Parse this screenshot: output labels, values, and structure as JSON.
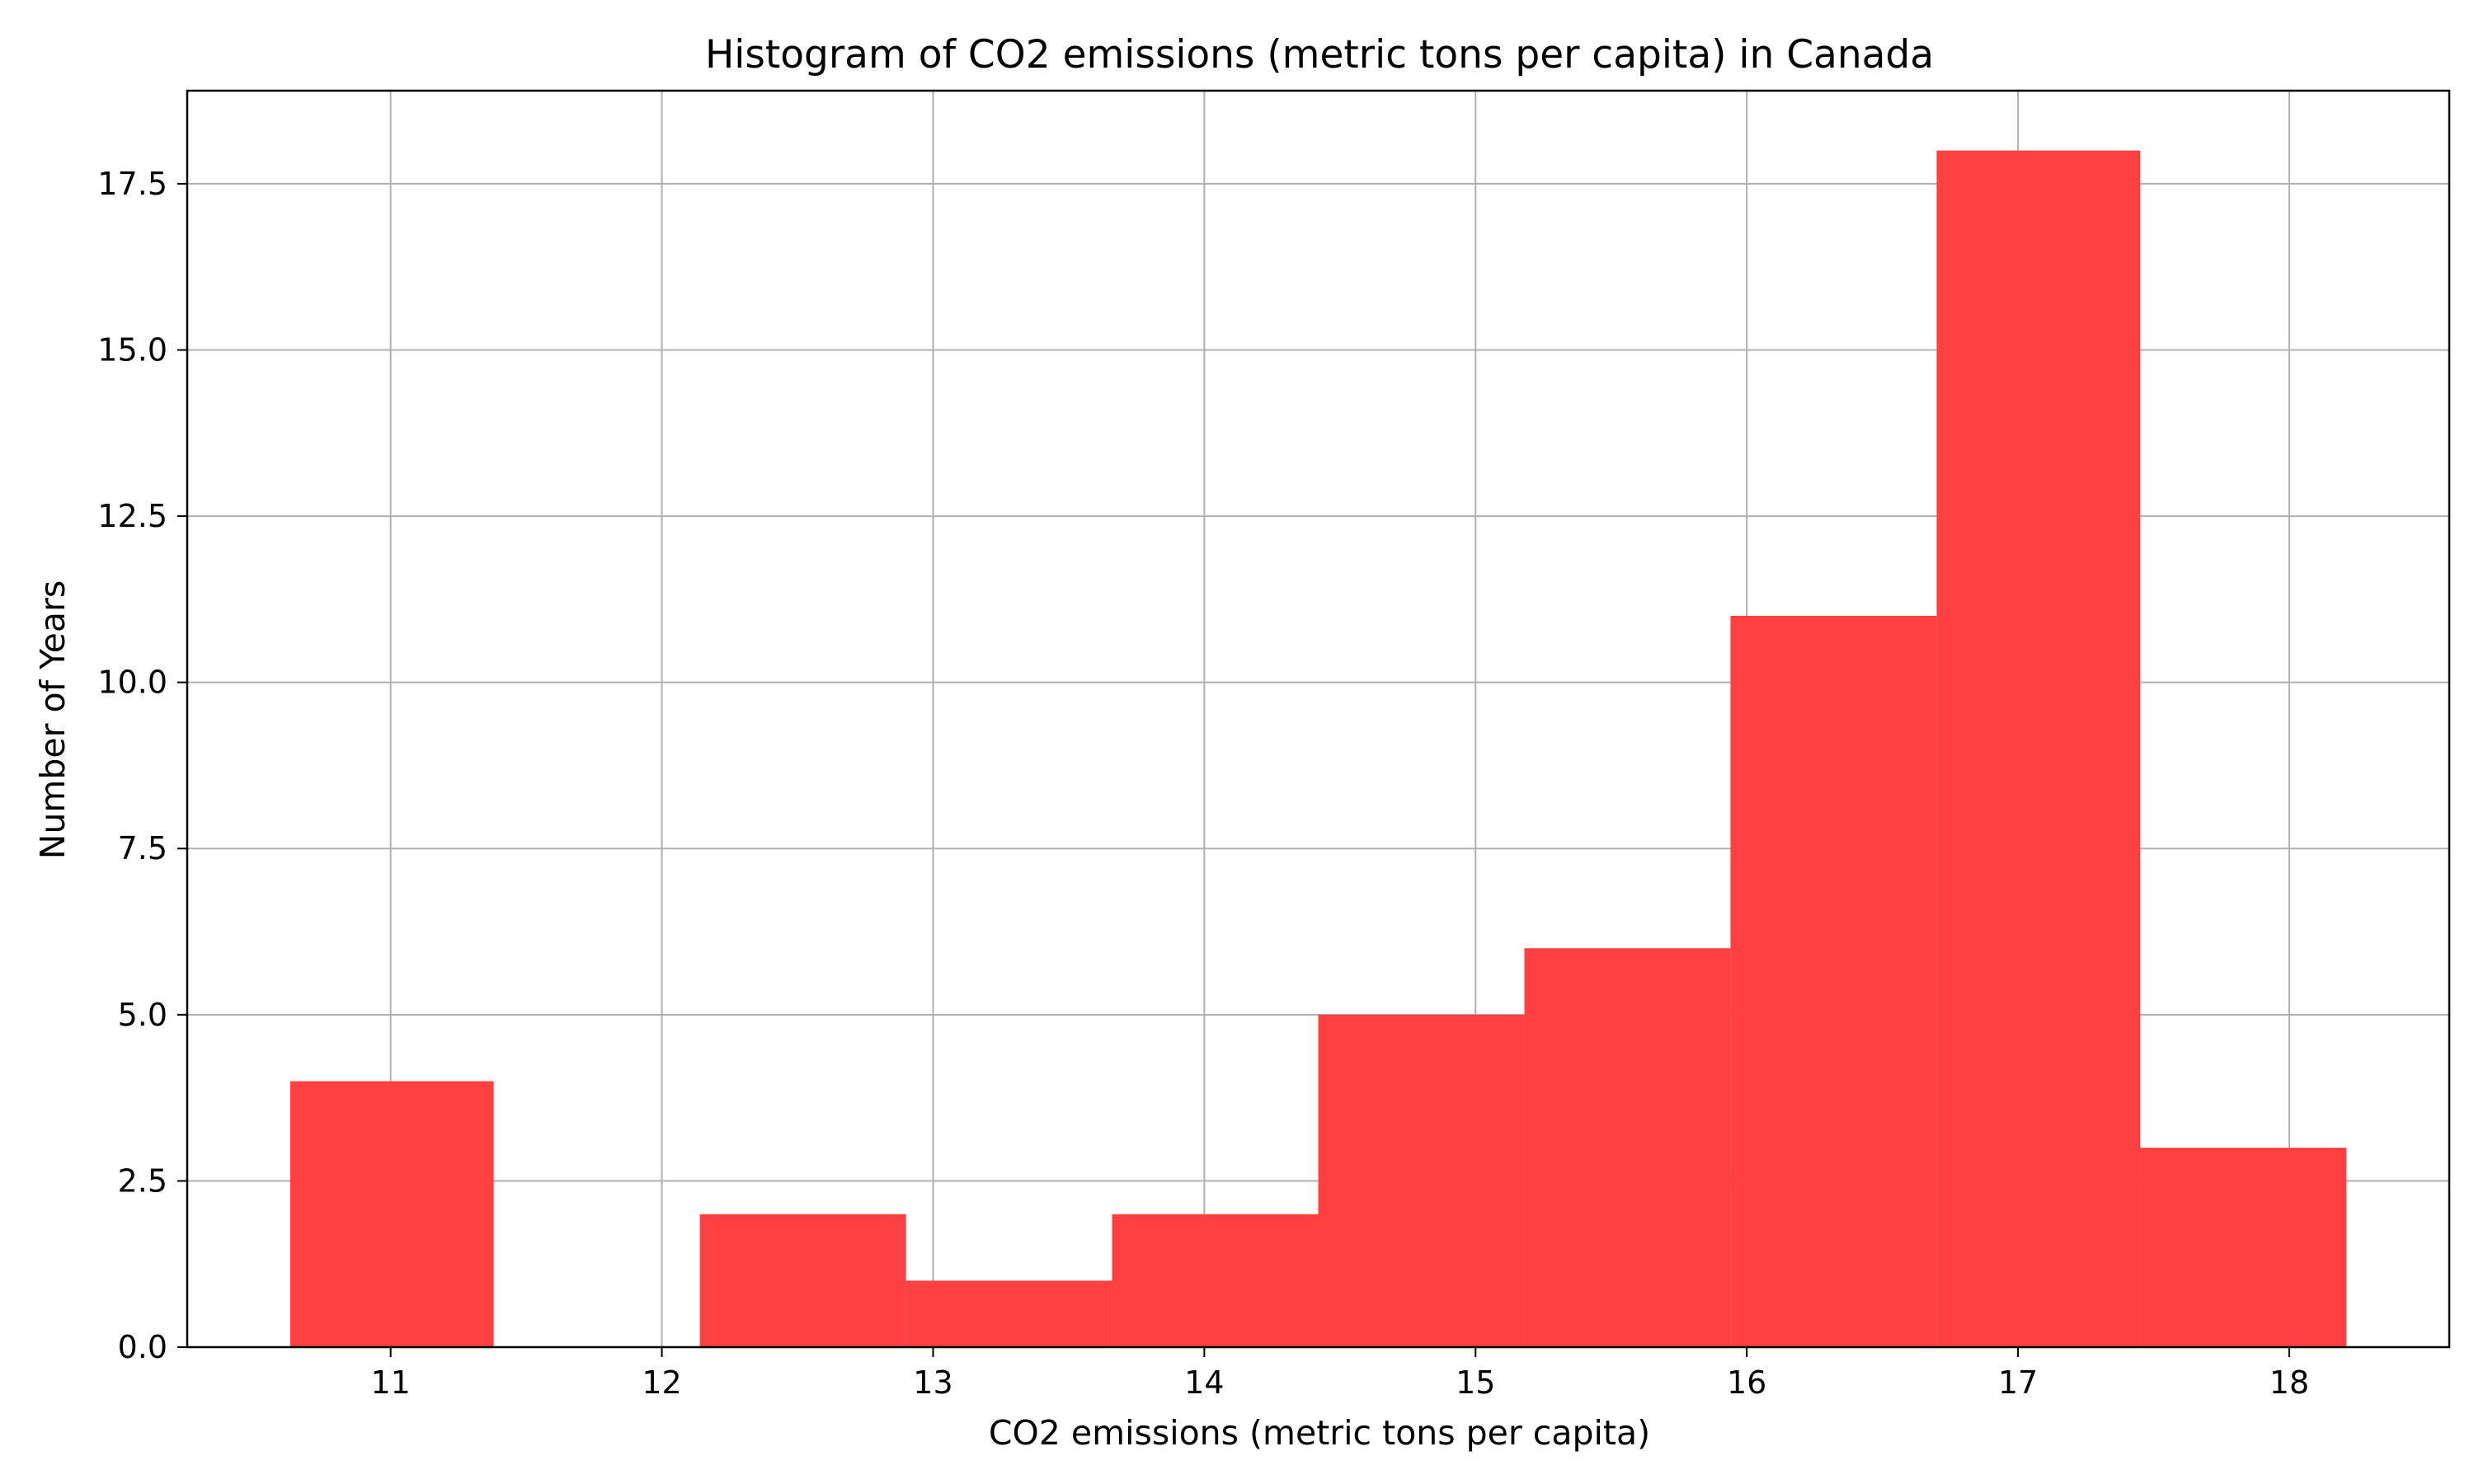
{
  "chart_data": {
    "type": "bar",
    "title": "Histogram of CO2 emissions (metric tons per capita) in Canada",
    "xlabel": "CO2 emissions (metric tons per capita)",
    "ylabel": "Number of Years",
    "bins": [
      {
        "x0": 10.63,
        "x1": 11.38,
        "count": 4
      },
      {
        "x0": 11.38,
        "x1": 12.14,
        "count": 0
      },
      {
        "x0": 12.14,
        "x1": 12.9,
        "count": 2
      },
      {
        "x0": 12.9,
        "x1": 13.66,
        "count": 1
      },
      {
        "x0": 13.66,
        "x1": 14.42,
        "count": 2
      },
      {
        "x0": 14.42,
        "x1": 15.18,
        "count": 5
      },
      {
        "x0": 15.18,
        "x1": 15.94,
        "count": 6
      },
      {
        "x0": 15.94,
        "x1": 16.7,
        "count": 11
      },
      {
        "x0": 16.7,
        "x1": 17.45,
        "count": 18
      },
      {
        "x0": 17.45,
        "x1": 18.21,
        "count": 3
      }
    ],
    "xlim": [
      10.25,
      18.59
    ],
    "ylim": [
      0,
      18.9
    ],
    "xticks": [
      11,
      12,
      13,
      14,
      15,
      16,
      17,
      18
    ],
    "yticks": [
      0,
      2.5,
      5,
      7.5,
      10,
      12.5,
      15,
      17.5
    ],
    "ytick_labels": [
      "0.0",
      "2.5",
      "5.0",
      "7.5",
      "10.0",
      "12.5",
      "15.0",
      "17.5"
    ],
    "grid": true,
    "bar_color": "#ff4040",
    "grid_color": "#b0b0b0"
  }
}
